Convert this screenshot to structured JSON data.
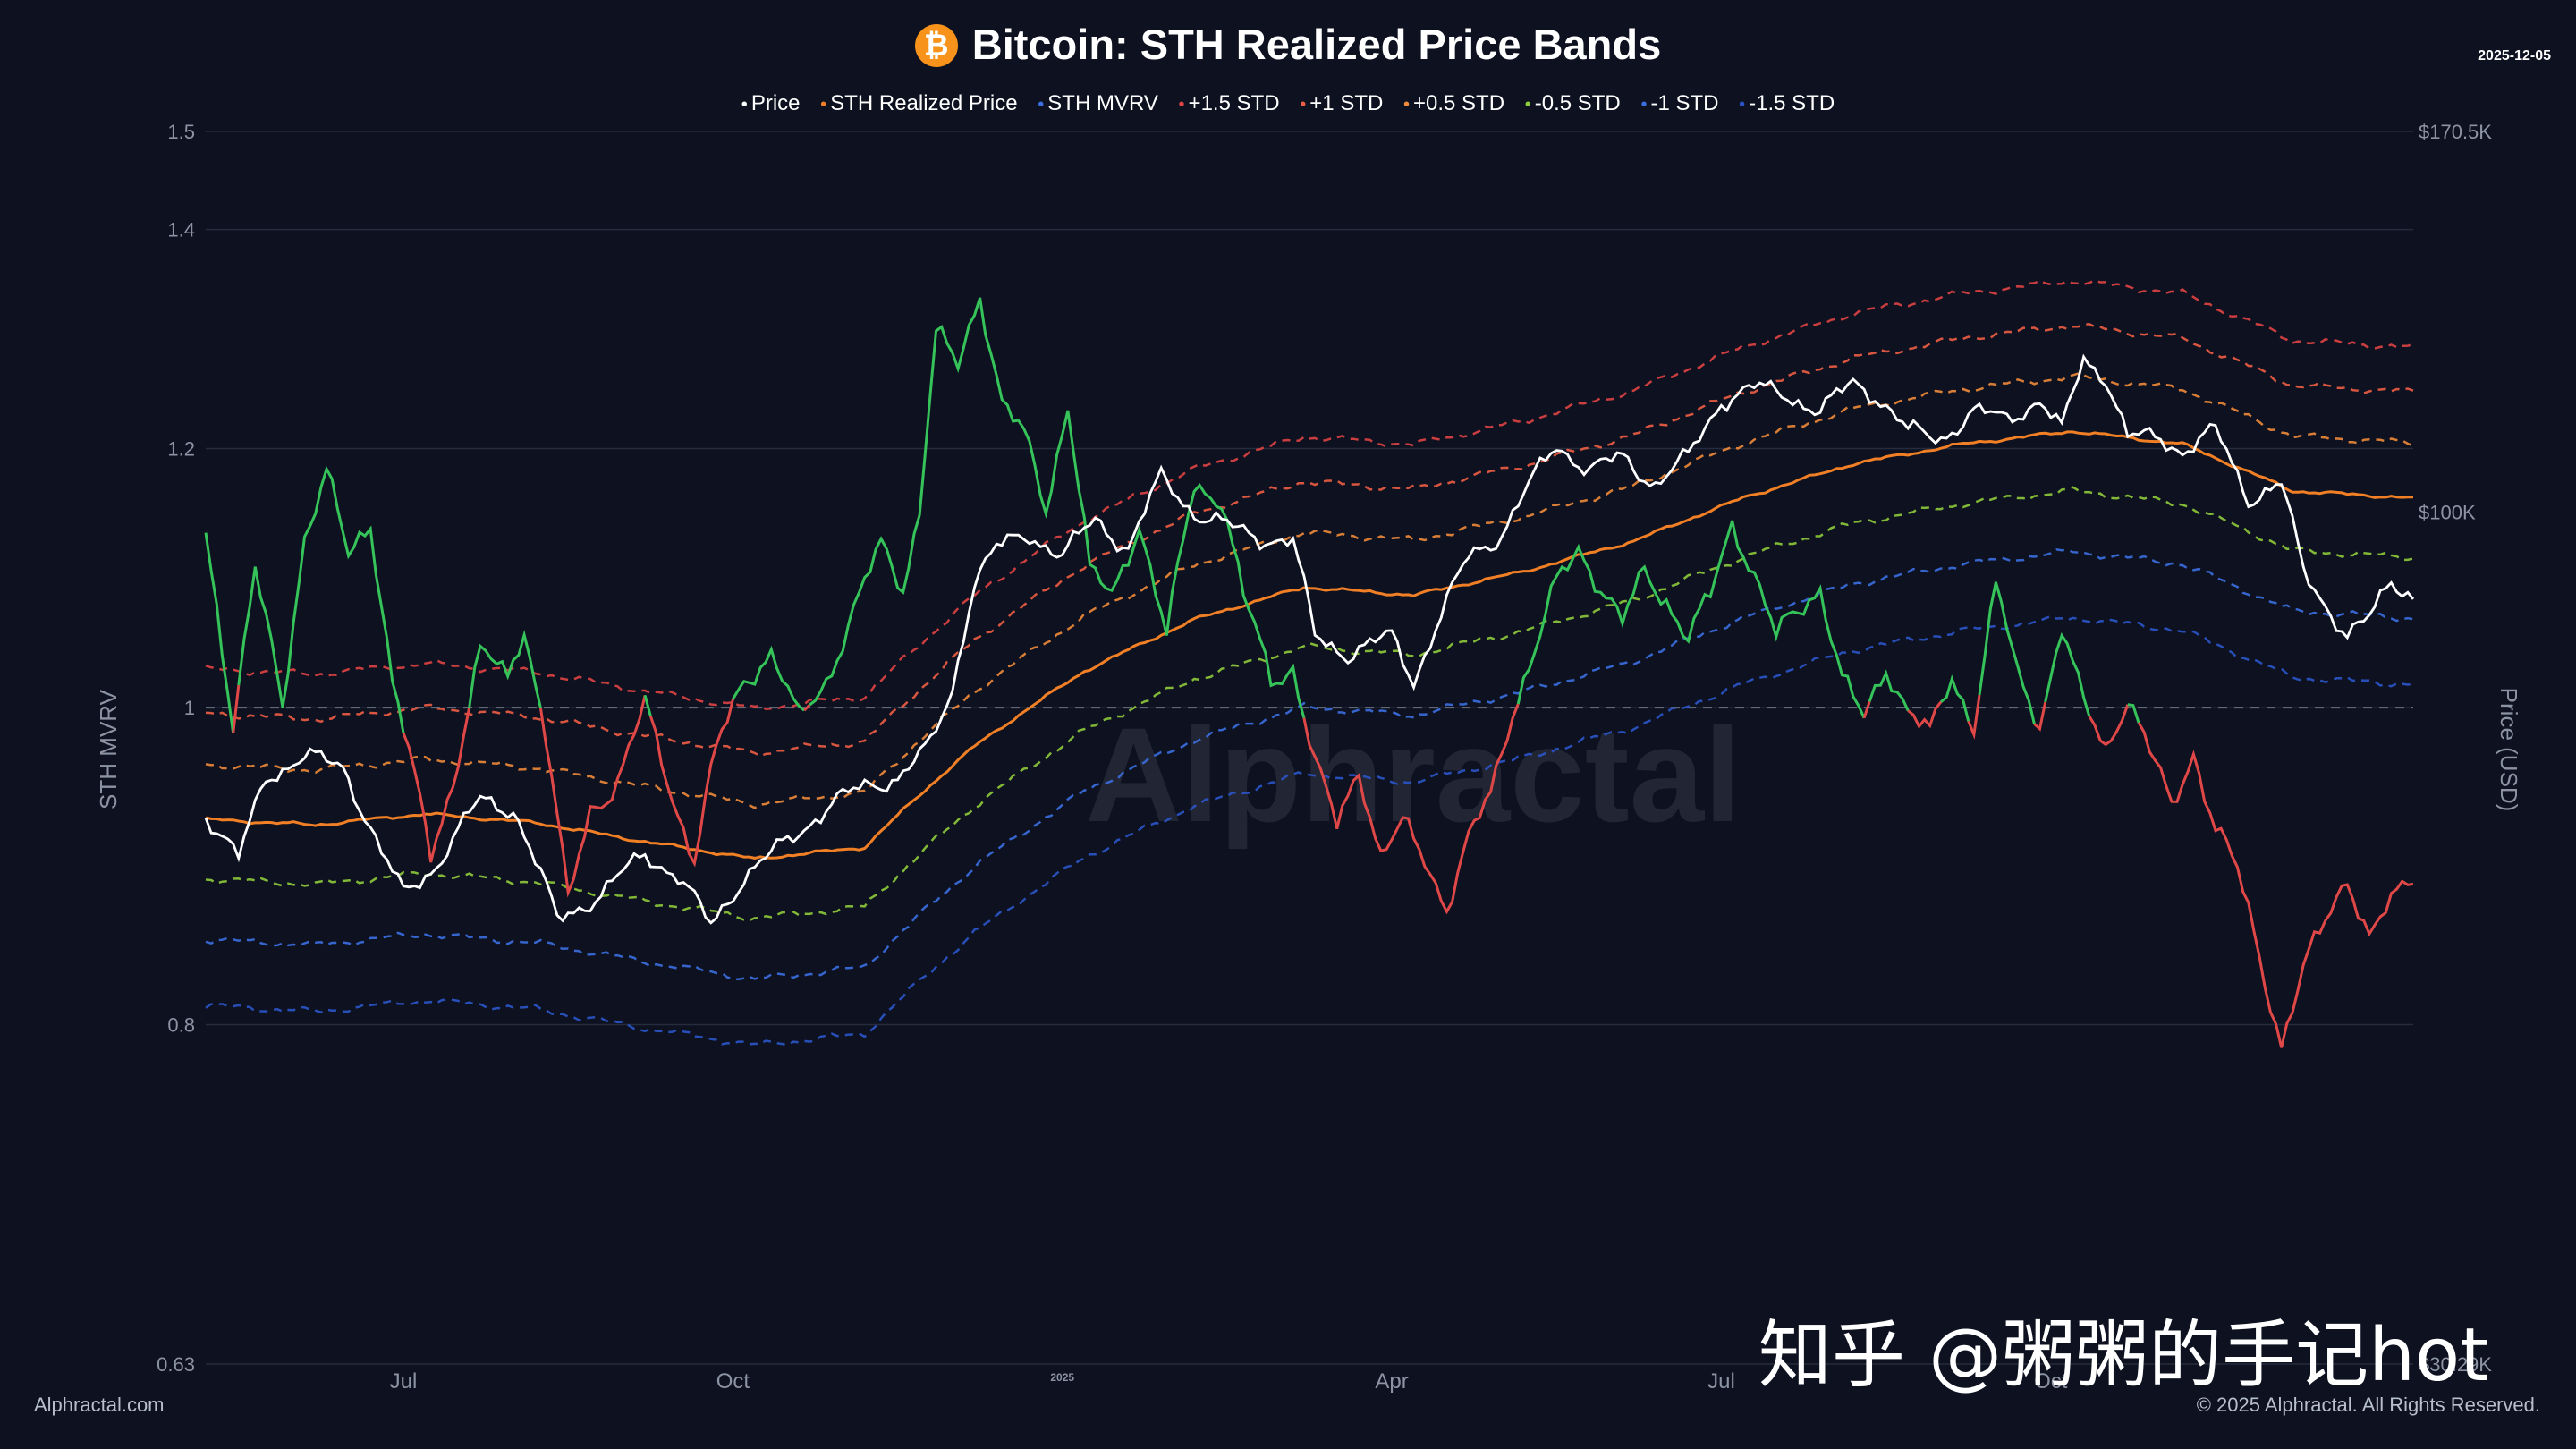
{
  "header": {
    "title": "Bitcoin: STH Realized Price Bands",
    "logo_glyph": "₿",
    "date": "2025-12-05"
  },
  "watermark": "Alphractal",
  "watermark_zh": "知乎 @粥粥的手记hot",
  "footer": {
    "left": "Alphractal.com",
    "right": "© 2025 Alphractal. All Rights Reserved."
  },
  "colors": {
    "background": "#0d1120",
    "price": "#ffffff",
    "realized": "#f07f25",
    "mvrv_high": "#35c35a",
    "mvrv_low": "#e04848",
    "std_p15": "#e04444",
    "std_p1": "#ee5e44",
    "std_p05": "#f08b3a",
    "std_m05": "#8fcb3a",
    "std_m1": "#3b6fe0",
    "std_m15": "#2b55c9",
    "grid": "#262c3d",
    "axis_text": "#8c93a3",
    "baseline": "#6d7382"
  },
  "chart_data": {
    "type": "line",
    "title": "Bitcoin: STH Realized Price Bands",
    "xlabel": "",
    "ylabel": "STH MVRV",
    "y2label": "Price (USD)",
    "x_domain_months": [
      0,
      20.1
    ],
    "x_ticks": [
      {
        "m": 1.8,
        "label": "Jul"
      },
      {
        "m": 4.8,
        "label": "Oct"
      },
      {
        "m": 7.8,
        "label": "2025"
      },
      {
        "m": 10.8,
        "label": "Apr"
      },
      {
        "m": 13.8,
        "label": "Jul"
      },
      {
        "m": 16.8,
        "label": "Oct"
      }
    ],
    "y_left": {
      "min": 0.63,
      "max": 1.5,
      "ticks": [
        1.5,
        1.4,
        1.2,
        1,
        0.8,
        0.63
      ]
    },
    "y_right": {
      "min": 30290,
      "max": 170500,
      "labels": [
        "$170.5K",
        "$100K",
        "$30.29K"
      ]
    },
    "baseline_mvrv": 1.0,
    "legend": [
      "Price",
      "STH Realized Price",
      "STH MVRV",
      "+1.5 STD",
      "+1 STD",
      "+0.5 STD",
      "-0.5 STD",
      "-1 STD",
      "-1.5 STD"
    ],
    "realized_price": [
      [
        0,
        65000
      ],
      [
        1,
        64500
      ],
      [
        2,
        65500
      ],
      [
        3,
        64700
      ],
      [
        4,
        63000
      ],
      [
        5,
        61500
      ],
      [
        6,
        62500
      ],
      [
        7,
        72000
      ],
      [
        8,
        80000
      ],
      [
        9,
        86000
      ],
      [
        10,
        90000
      ],
      [
        11,
        89000
      ],
      [
        12,
        92000
      ],
      [
        13,
        96000
      ],
      [
        14,
        102000
      ],
      [
        15,
        107000
      ],
      [
        16,
        110000
      ],
      [
        17,
        112000
      ],
      [
        18,
        110000
      ],
      [
        19,
        103000
      ],
      [
        20.1,
        102000
      ]
    ],
    "price": [
      [
        0,
        65500
      ],
      [
        0.3,
        61500
      ],
      [
        0.55,
        69000
      ],
      [
        0.9,
        71000
      ],
      [
        1.25,
        70000
      ],
      [
        1.6,
        62000
      ],
      [
        1.8,
        58500
      ],
      [
        2.1,
        61000
      ],
      [
        2.5,
        66800
      ],
      [
        2.8,
        66000
      ],
      [
        3.2,
        56500
      ],
      [
        3.6,
        58500
      ],
      [
        4.0,
        62000
      ],
      [
        4.3,
        60000
      ],
      [
        4.6,
        56000
      ],
      [
        4.9,
        60000
      ],
      [
        5.3,
        63000
      ],
      [
        5.7,
        66500
      ],
      [
        6.0,
        68000
      ],
      [
        6.3,
        69000
      ],
      [
        6.6,
        72000
      ],
      [
        6.8,
        78000
      ],
      [
        7.0,
        91000
      ],
      [
        7.2,
        95000
      ],
      [
        7.5,
        97000
      ],
      [
        7.8,
        94000
      ],
      [
        8.1,
        99000
      ],
      [
        8.4,
        95000
      ],
      [
        8.7,
        105000
      ],
      [
        9.0,
        100000
      ],
      [
        9.3,
        98000
      ],
      [
        9.6,
        96500
      ],
      [
        9.9,
        96000
      ],
      [
        10.1,
        84000
      ],
      [
        10.4,
        82000
      ],
      [
        10.8,
        84000
      ],
      [
        11.0,
        79000
      ],
      [
        11.2,
        85000
      ],
      [
        11.5,
        94000
      ],
      [
        11.8,
        97000
      ],
      [
        12.1,
        105000
      ],
      [
        12.3,
        110000
      ],
      [
        12.6,
        106000
      ],
      [
        12.9,
        108000
      ],
      [
        13.2,
        104000
      ],
      [
        13.5,
        108000
      ],
      [
        13.8,
        117000
      ],
      [
        14.1,
        119000
      ],
      [
        14.4,
        118000
      ],
      [
        14.7,
        115000
      ],
      [
        15.0,
        120000
      ],
      [
        15.2,
        118000
      ],
      [
        15.5,
        112000
      ],
      [
        15.8,
        111000
      ],
      [
        16.1,
        115000
      ],
      [
        16.4,
        114000
      ],
      [
        16.7,
        117000
      ],
      [
        16.9,
        112000
      ],
      [
        17.1,
        124000
      ],
      [
        17.3,
        121000
      ],
      [
        17.5,
        111000
      ],
      [
        17.8,
        111000
      ],
      [
        18.0,
        109000
      ],
      [
        18.3,
        112000
      ],
      [
        18.6,
        102000
      ],
      [
        18.9,
        104000
      ],
      [
        19.1,
        92000
      ],
      [
        19.3,
        88000
      ],
      [
        19.5,
        84000
      ],
      [
        19.7,
        86000
      ],
      [
        19.9,
        91000
      ],
      [
        20.1,
        89000
      ]
    ],
    "mvrv": [
      [
        0,
        1.13
      ],
      [
        0.25,
        0.99
      ],
      [
        0.45,
        1.1
      ],
      [
        0.7,
        1.0
      ],
      [
        0.9,
        1.13
      ],
      [
        1.1,
        1.18
      ],
      [
        1.3,
        1.11
      ],
      [
        1.5,
        1.14
      ],
      [
        1.7,
        1.02
      ],
      [
        1.9,
        0.95
      ],
      [
        2.05,
        0.9
      ],
      [
        2.25,
        0.95
      ],
      [
        2.5,
        1.04
      ],
      [
        2.75,
        1.02
      ],
      [
        2.9,
        1.06
      ],
      [
        3.1,
        0.98
      ],
      [
        3.3,
        0.87
      ],
      [
        3.5,
        0.93
      ],
      [
        3.75,
        0.95
      ],
      [
        4.0,
        1.0
      ],
      [
        4.25,
        0.94
      ],
      [
        4.45,
        0.9
      ],
      [
        4.65,
        0.97
      ],
      [
        4.9,
        1.02
      ],
      [
        5.15,
        1.04
      ],
      [
        5.4,
        0.99
      ],
      [
        5.65,
        1.02
      ],
      [
        5.9,
        1.07
      ],
      [
        6.15,
        1.12
      ],
      [
        6.35,
        1.09
      ],
      [
        6.5,
        1.15
      ],
      [
        6.65,
        1.3
      ],
      [
        6.85,
        1.27
      ],
      [
        7.05,
        1.34
      ],
      [
        7.25,
        1.24
      ],
      [
        7.45,
        1.21
      ],
      [
        7.65,
        1.15
      ],
      [
        7.85,
        1.24
      ],
      [
        8.05,
        1.1
      ],
      [
        8.25,
        1.08
      ],
      [
        8.5,
        1.14
      ],
      [
        8.75,
        1.05
      ],
      [
        9.0,
        1.17
      ],
      [
        9.25,
        1.16
      ],
      [
        9.45,
        1.08
      ],
      [
        9.7,
        1.02
      ],
      [
        9.9,
        1.03
      ],
      [
        10.1,
        0.96
      ],
      [
        10.3,
        0.92
      ],
      [
        10.5,
        0.96
      ],
      [
        10.7,
        0.9
      ],
      [
        10.9,
        0.92
      ],
      [
        11.1,
        0.9
      ],
      [
        11.3,
        0.87
      ],
      [
        11.5,
        0.91
      ],
      [
        11.7,
        0.94
      ],
      [
        11.9,
        1.0
      ],
      [
        12.1,
        1.04
      ],
      [
        12.3,
        1.09
      ],
      [
        12.5,
        1.12
      ],
      [
        12.7,
        1.09
      ],
      [
        12.9,
        1.06
      ],
      [
        13.1,
        1.1
      ],
      [
        13.3,
        1.08
      ],
      [
        13.5,
        1.05
      ],
      [
        13.7,
        1.08
      ],
      [
        13.9,
        1.14
      ],
      [
        14.1,
        1.1
      ],
      [
        14.3,
        1.05
      ],
      [
        14.5,
        1.07
      ],
      [
        14.7,
        1.09
      ],
      [
        14.9,
        1.02
      ],
      [
        15.1,
        0.99
      ],
      [
        15.3,
        1.03
      ],
      [
        15.5,
        1.0
      ],
      [
        15.7,
        0.98
      ],
      [
        15.9,
        1.02
      ],
      [
        16.1,
        0.99
      ],
      [
        16.3,
        1.09
      ],
      [
        16.5,
        1.02
      ],
      [
        16.7,
        0.99
      ],
      [
        16.9,
        1.06
      ],
      [
        17.1,
        1.0
      ],
      [
        17.3,
        0.97
      ],
      [
        17.5,
        1.01
      ],
      [
        17.7,
        0.97
      ],
      [
        17.9,
        0.93
      ],
      [
        18.1,
        0.97
      ],
      [
        18.3,
        0.92
      ],
      [
        18.5,
        0.89
      ],
      [
        18.7,
        0.84
      ],
      [
        18.9,
        0.79
      ],
      [
        19.1,
        0.83
      ],
      [
        19.3,
        0.86
      ],
      [
        19.5,
        0.89
      ],
      [
        19.7,
        0.85
      ],
      [
        20.1,
        0.89
      ]
    ],
    "std_bands": [
      {
        "name": "+1.5 STD",
        "mult": 1.235
      },
      {
        "name": "+1 STD",
        "mult": 1.16
      },
      {
        "name": "+0.5 STD",
        "mult": 1.08
      },
      {
        "name": "-0.5 STD",
        "mult": 0.92
      },
      {
        "name": "-1 STD",
        "mult": 0.845
      },
      {
        "name": "-1.5 STD",
        "mult": 0.77
      }
    ]
  }
}
